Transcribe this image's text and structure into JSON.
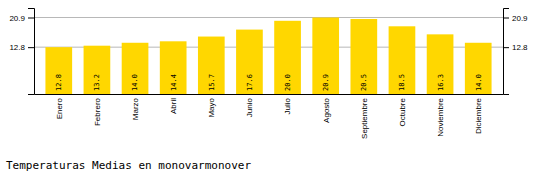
{
  "chart_data": {
    "type": "bar",
    "title": "Temperaturas Medias en monovarmonover",
    "categories": [
      "Enero",
      "Febrero",
      "Marzo",
      "Abril",
      "Mayo",
      "Junio",
      "Julio",
      "Agosto",
      "Septiembre",
      "Octubre",
      "Noviembre",
      "Diciembre"
    ],
    "values": [
      12.8,
      13.2,
      14.0,
      14.4,
      15.7,
      17.6,
      20.0,
      20.9,
      20.5,
      18.5,
      16.3,
      14.0
    ],
    "value_labels": [
      "12.8",
      "13.2",
      "14.0",
      "14.4",
      "15.7",
      "17.6",
      "20.0",
      "20.9",
      "20.5",
      "18.5",
      "16.3",
      "14.0"
    ],
    "color": "#FFD700",
    "ylim": [
      0,
      23.5
    ],
    "yticks": [
      12.8,
      20.9
    ],
    "y2lim": [
      0,
      23.5
    ],
    "y2ticks": [
      12.8,
      20.9
    ],
    "grid": true,
    "data_labels": true
  }
}
